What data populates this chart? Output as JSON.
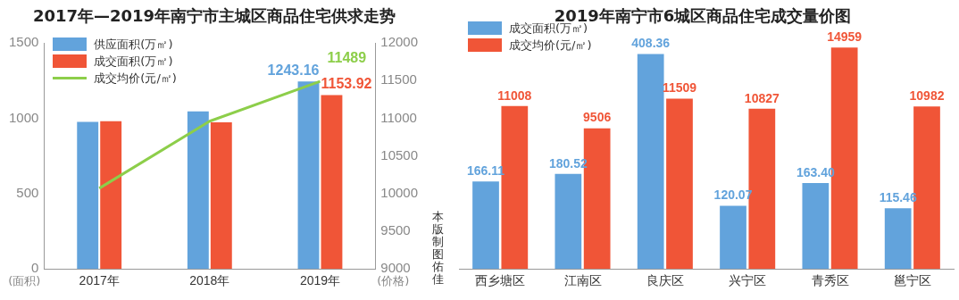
{
  "chart_data": [
    {
      "type": "bar",
      "title": "2017年—2019年南宁市主城区商品住宅供求走势",
      "ylabel": "(面积)",
      "y2label": "(价格)",
      "categories": [
        "2017年",
        "2018年",
        "2019年"
      ],
      "series": [
        {
          "name": "供应面积(万㎡)",
          "color": "#62a3dc",
          "values": [
            976,
            1045,
            1243.16
          ],
          "value_labels": [
            null,
            null,
            "1243.16"
          ]
        },
        {
          "name": "成交面积(万㎡)",
          "color": "#f05537",
          "values": [
            980,
            973,
            1153.92
          ],
          "value_labels": [
            null,
            null,
            "1153.92"
          ]
        },
        {
          "name": "成交均价(元/㎡)",
          "type": "line",
          "axis": "y2",
          "color": "#8dce4a",
          "values": [
            10070,
            10960,
            11489
          ],
          "value_labels": [
            null,
            null,
            "11489"
          ]
        }
      ],
      "ylim": [
        0,
        1500
      ],
      "yticks": [
        0,
        500,
        1000,
        1500
      ],
      "y2lim": [
        9000,
        12000
      ],
      "y2ticks": [
        9000,
        9500,
        10000,
        10500,
        11000,
        11500,
        12000
      ],
      "grid": false,
      "legend": "top left"
    },
    {
      "type": "bar",
      "title": "2019年南宁市6城区商品住宅成交量价图",
      "categories": [
        "西乡塘区",
        "江南区",
        "良庆区",
        "兴宁区",
        "青秀区",
        "邕宁区"
      ],
      "series": [
        {
          "name": "成交面积(万㎡)",
          "color": "#62a3dc",
          "values": [
            166.11,
            180.52,
            408.36,
            120.07,
            163.4,
            115.46
          ],
          "value_labels": [
            "166.11",
            "180.52",
            "408.36",
            "120.07",
            "163.40",
            "115.46"
          ]
        },
        {
          "name": "成交均价(元/㎡)",
          "axis": "y2",
          "color": "#f05537",
          "values": [
            11008,
            9506,
            11509,
            10827,
            14959,
            10982
          ],
          "value_labels": [
            "11008",
            "9506",
            "11509",
            "10827",
            "14959",
            "10982"
          ]
        }
      ],
      "tick_labels": "x",
      "grid": false,
      "legend": "top left",
      "annotations": [
        "本版制图佑佳"
      ]
    }
  ]
}
